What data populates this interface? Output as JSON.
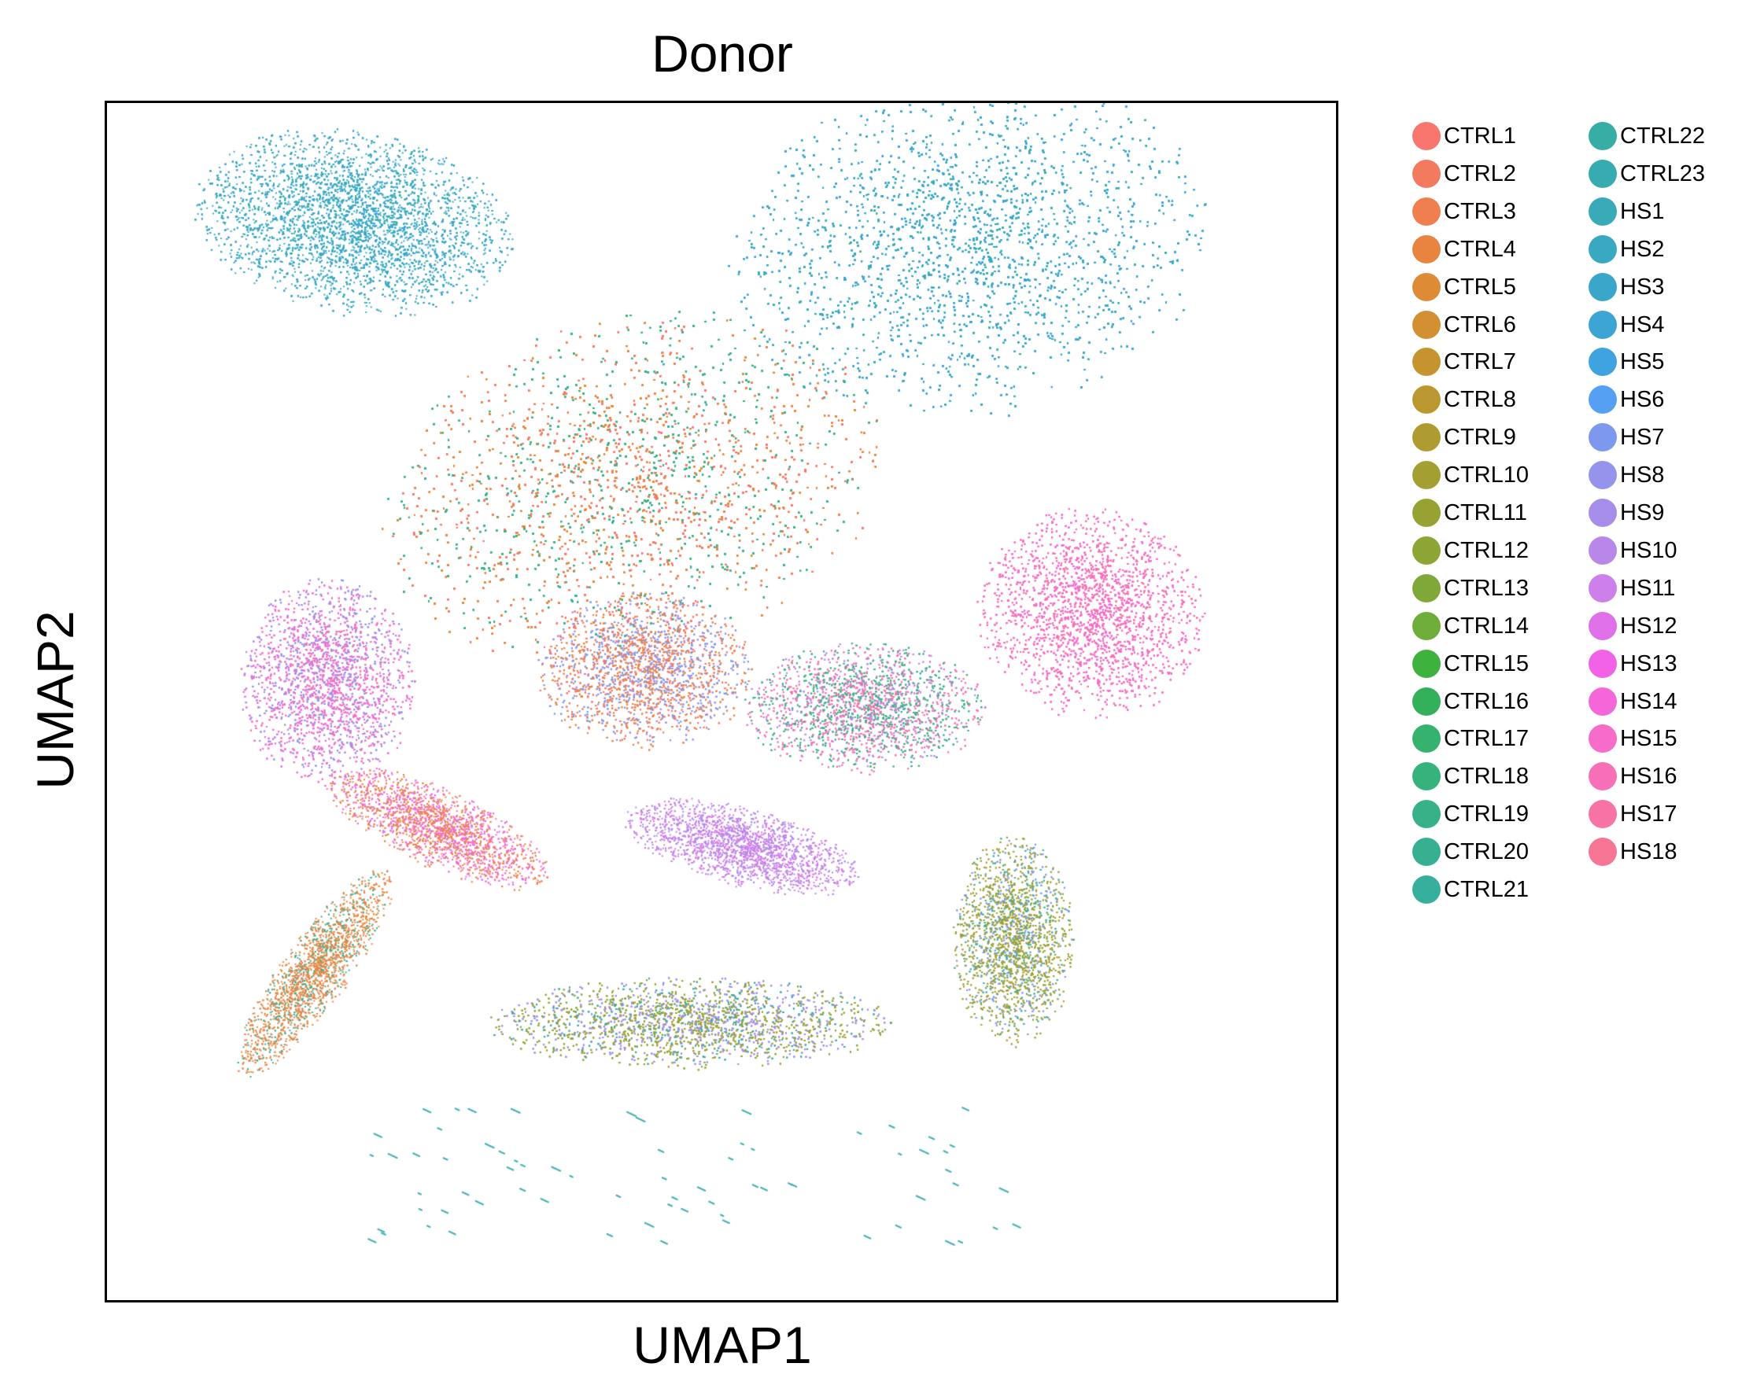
{
  "chart_data": {
    "type": "scatter",
    "title": "Donor",
    "xlabel": "UMAP1",
    "ylabel": "UMAP2",
    "show_ticks": false,
    "grid": false,
    "legend_placement": "right, outside plot, two columns",
    "point_style": "very small dots, tens of thousands of cells",
    "legend": [
      {
        "name": "CTRL1",
        "color": "#F8766D"
      },
      {
        "name": "CTRL2",
        "color": "#F47A5F"
      },
      {
        "name": "CTRL3",
        "color": "#EF7F4F"
      },
      {
        "name": "CTRL4",
        "color": "#E8843F"
      },
      {
        "name": "CTRL5",
        "color": "#DE8B36"
      },
      {
        "name": "CTRL6",
        "color": "#D39032"
      },
      {
        "name": "CTRL7",
        "color": "#C6942E"
      },
      {
        "name": "CTRL8",
        "color": "#BA982F"
      },
      {
        "name": "CTRL9",
        "color": "#AE9C30"
      },
      {
        "name": "CTRL10",
        "color": "#A39F31"
      },
      {
        "name": "CTRL11",
        "color": "#98A232"
      },
      {
        "name": "CTRL12",
        "color": "#8DA535"
      },
      {
        "name": "CTRL13",
        "color": "#80A839"
      },
      {
        "name": "CTRL14",
        "color": "#6EAD3A"
      },
      {
        "name": "CTRL15",
        "color": "#3DB33D"
      },
      {
        "name": "CTRL16",
        "color": "#33B05A"
      },
      {
        "name": "CTRL17",
        "color": "#35B26D"
      },
      {
        "name": "CTRL18",
        "color": "#36B27C"
      },
      {
        "name": "CTRL19",
        "color": "#37B188"
      },
      {
        "name": "CTRL20",
        "color": "#37B092"
      },
      {
        "name": "CTRL21",
        "color": "#36AF9C"
      },
      {
        "name": "CTRL22",
        "color": "#36AEA6"
      },
      {
        "name": "CTRL23",
        "color": "#37ACB0"
      },
      {
        "name": "HS1",
        "color": "#39ABB8"
      },
      {
        "name": "HS2",
        "color": "#39A9C1"
      },
      {
        "name": "HS3",
        "color": "#3AA7CA"
      },
      {
        "name": "HS4",
        "color": "#3CA5D4"
      },
      {
        "name": "HS5",
        "color": "#3EA3DE"
      },
      {
        "name": "HS6",
        "color": "#55A0F3"
      },
      {
        "name": "HS7",
        "color": "#7C99EE"
      },
      {
        "name": "HS8",
        "color": "#9593EC"
      },
      {
        "name": "HS9",
        "color": "#A78DEA"
      },
      {
        "name": "HS10",
        "color": "#B887E8"
      },
      {
        "name": "HS11",
        "color": "#CD7FEA"
      },
      {
        "name": "HS12",
        "color": "#E070E8"
      },
      {
        "name": "HS13",
        "color": "#F162E7"
      },
      {
        "name": "HS14",
        "color": "#F567D8"
      },
      {
        "name": "HS15",
        "color": "#F66CC8"
      },
      {
        "name": "HS16",
        "color": "#F770B7"
      },
      {
        "name": "HS17",
        "color": "#F773A6"
      },
      {
        "name": "HS18",
        "color": "#F67595"
      }
    ],
    "clusters": [
      {
        "region": "top-left arc",
        "cx": -5.2,
        "cy": 7.6,
        "rx": 2.4,
        "ry": 1.4,
        "rot": -10,
        "donors": [
          "HS2",
          "HS3",
          "HS4",
          "CTRL23"
        ]
      },
      {
        "region": "top-right large",
        "cx": 4.3,
        "cy": 7.2,
        "rx": 3.6,
        "ry": 2.6,
        "rot": 10,
        "donors": [
          "HS1",
          "HS2",
          "HS3",
          "HS4",
          "HS5",
          "CTRL23"
        ]
      },
      {
        "region": "central large",
        "cx": -0.9,
        "cy": 3.4,
        "rx": 3.8,
        "ry": 2.6,
        "rot": 15,
        "donors": [
          "CTRL1",
          "CTRL3",
          "CTRL4",
          "CTRL5",
          "CTRL2",
          "CTRL18",
          "CTRL19",
          "CTRL20"
        ]
      },
      {
        "region": "central lower lobe",
        "cx": -0.7,
        "cy": 0.5,
        "rx": 1.6,
        "ry": 1.2,
        "rot": 0,
        "donors": [
          "CTRL3",
          "CTRL4",
          "HS7",
          "HS8",
          "CTRL1"
        ]
      },
      {
        "region": "left pink blob",
        "cx": -5.6,
        "cy": 0.3,
        "rx": 1.3,
        "ry": 1.6,
        "rot": 0,
        "donors": [
          "HS14",
          "HS15",
          "HS16",
          "HS8",
          "HS9"
        ]
      },
      {
        "region": "right pink blob",
        "cx": 6.2,
        "cy": 1.4,
        "rx": 1.7,
        "ry": 1.6,
        "rot": -20,
        "donors": [
          "HS15",
          "HS16",
          "HS14",
          "HS17"
        ]
      },
      {
        "region": "center-right mixed",
        "cx": 2.7,
        "cy": -0.1,
        "rx": 1.8,
        "ry": 1.0,
        "rot": 0,
        "donors": [
          "HS16",
          "HS17",
          "CTRL18",
          "CTRL20",
          "HS10"
        ]
      },
      {
        "region": "left-middle band",
        "cx": -3.9,
        "cy": -2.0,
        "rx": 1.8,
        "ry": 0.6,
        "rot": -25,
        "donors": [
          "CTRL4",
          "CTRL3",
          "HS13",
          "HS15"
        ]
      },
      {
        "region": "center purple",
        "cx": 0.8,
        "cy": -2.3,
        "rx": 1.8,
        "ry": 0.6,
        "rot": -15,
        "donors": [
          "HS10",
          "HS11",
          "HS12",
          "HS9"
        ]
      },
      {
        "region": "left crescent",
        "cx": -5.8,
        "cy": -4.3,
        "rx": 1.9,
        "ry": 0.5,
        "rot": 55,
        "donors": [
          "CTRL4",
          "CTRL3",
          "CTRL5",
          "CTRL20"
        ]
      },
      {
        "region": "bottom band",
        "cx": 0.0,
        "cy": -5.1,
        "rx": 3.0,
        "ry": 0.7,
        "rot": 0,
        "donors": [
          "CTRL10",
          "CTRL11",
          "CTRL12",
          "HS8",
          "HS9",
          "CTRL22"
        ]
      },
      {
        "region": "bottom-right blob",
        "cx": 5.0,
        "cy": -3.8,
        "rx": 0.9,
        "ry": 1.6,
        "rot": 0,
        "donors": [
          "CTRL9",
          "CTRL10",
          "CTRL11",
          "CTRL12",
          "HS7",
          "CTRL21"
        ]
      }
    ],
    "xlim": [
      -9.0,
      10.0
    ],
    "ylim": [
      -9.5,
      9.5
    ]
  }
}
